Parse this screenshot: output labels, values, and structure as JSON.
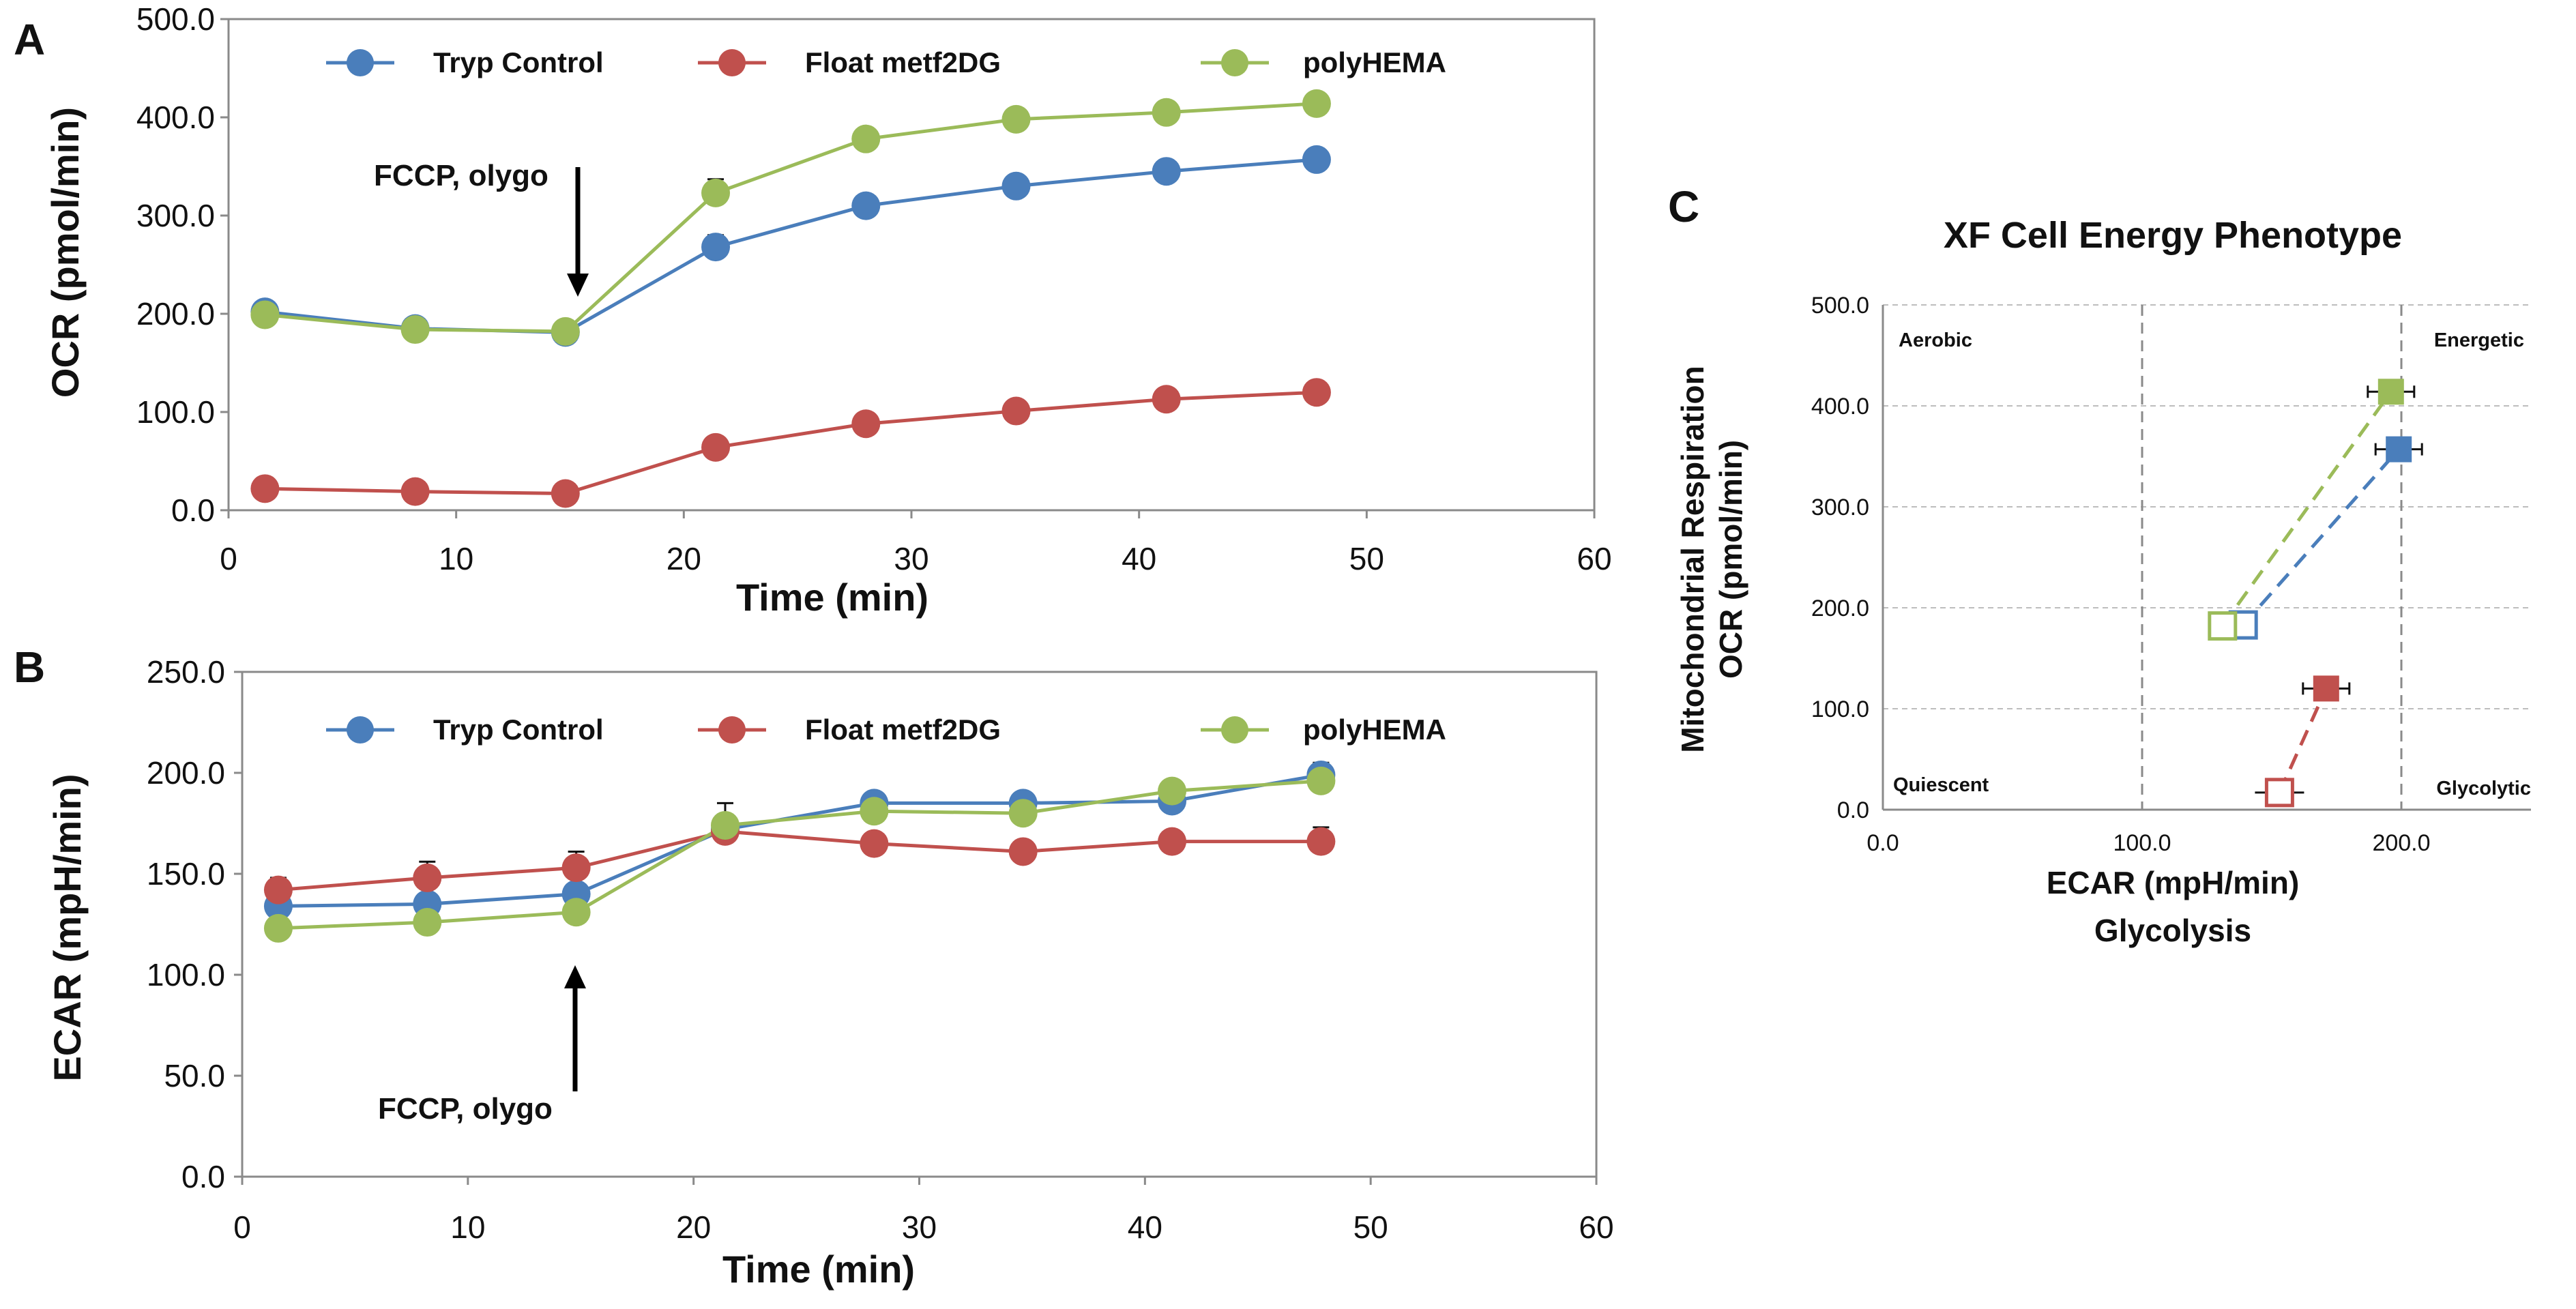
{
  "chart_data": [
    {
      "panel": "A",
      "type": "line",
      "title": "",
      "xlabel": "Time (min)",
      "ylabel": "OCR (pmol/min)",
      "xlim": [
        0,
        60
      ],
      "ylim": [
        0,
        500
      ],
      "xticks": [
        "0",
        "10",
        "20",
        "30",
        "40",
        "50",
        "60"
      ],
      "yticks": [
        "0.0",
        "100.0",
        "200.0",
        "300.0",
        "400.0",
        "500.0"
      ],
      "x": [
        1.6,
        8.2,
        14.8,
        21.4,
        28.0,
        34.6,
        41.2,
        47.8
      ],
      "series": [
        {
          "name": "Tryp Control",
          "color": "#4a7ebb",
          "values": [
            202,
            185,
            181,
            268,
            310,
            330,
            345,
            357
          ],
          "errors": [
            0,
            0,
            0,
            12,
            0,
            0,
            0,
            0
          ]
        },
        {
          "name": "Float metf2DG",
          "color": "#c0504d",
          "values": [
            22,
            19,
            17,
            64,
            88,
            101,
            113,
            120
          ],
          "errors": [
            0,
            0,
            0,
            0,
            0,
            0,
            0,
            0
          ]
        },
        {
          "name": "polyHEMA",
          "color": "#9bbb59",
          "values": [
            199,
            184,
            182,
            323,
            378,
            398,
            405,
            414
          ],
          "errors": [
            0,
            0,
            0,
            14,
            0,
            0,
            0,
            0
          ]
        }
      ],
      "annotation": {
        "text": "FCCP, olygo",
        "x": 15.2
      }
    },
    {
      "panel": "B",
      "type": "line",
      "title": "",
      "xlabel": "Time (min)",
      "ylabel": "ECAR (mpH/min)",
      "xlim": [
        0,
        60
      ],
      "ylim": [
        0,
        250
      ],
      "xticks": [
        "0",
        "10",
        "20",
        "30",
        "40",
        "50",
        "60"
      ],
      "yticks": [
        "0.0",
        "50.0",
        "100.0",
        "150.0",
        "200.0",
        "250.0"
      ],
      "x": [
        1.6,
        8.2,
        14.8,
        21.4,
        28.0,
        34.6,
        41.2,
        47.8
      ],
      "series": [
        {
          "name": "Tryp Control",
          "color": "#4a7ebb",
          "values": [
            134,
            135,
            140,
            172,
            185,
            185,
            186,
            199
          ],
          "errors": [
            0,
            0,
            0,
            0,
            0,
            0,
            0,
            0
          ]
        },
        {
          "name": "Float metf2DG",
          "color": "#c0504d",
          "values": [
            142,
            148,
            153,
            171,
            165,
            161,
            166,
            166
          ],
          "errors": [
            6,
            8,
            8,
            0,
            0,
            0,
            0,
            7
          ]
        },
        {
          "name": "polyHEMA",
          "color": "#9bbb59",
          "values": [
            123,
            126,
            131,
            174,
            181,
            180,
            191,
            196
          ],
          "errors": [
            0,
            0,
            0,
            11,
            0,
            0,
            0,
            9
          ]
        }
      ],
      "annotation": {
        "text": "FCCP, olygo",
        "x": 14.8
      }
    },
    {
      "panel": "C",
      "type": "scatter",
      "title": "XF Cell Energy Phenotype",
      "xlabel": "ECAR (mpH/min)",
      "xlabel2": "Glycolysis",
      "ylabel": "OCR (pmol/min)",
      "ylabel2": "Mitochondrial Respiration",
      "xlim": [
        0,
        250
      ],
      "ylim": [
        0,
        500
      ],
      "xticks": [
        "0.0",
        "100.0",
        "200.0"
      ],
      "yticks": [
        "0.0",
        "100.0",
        "200.0",
        "300.0",
        "400.0",
        "500.0"
      ],
      "quadrants": {
        "top_left": "Aerobic",
        "top_right": "Energetic",
        "bottom_left": "Quiescent",
        "bottom_right": "Glycolytic"
      },
      "series": [
        {
          "name": "Tryp Control",
          "color": "#4a7ebb",
          "baseline": {
            "x": 139,
            "y": 183
          },
          "stressed": {
            "x": 199,
            "y": 357
          }
        },
        {
          "name": "Float metf2DG",
          "color": "#c0504d",
          "baseline": {
            "x": 153,
            "y": 17
          },
          "stressed": {
            "x": 171,
            "y": 120
          }
        },
        {
          "name": "polyHEMA",
          "color": "#9bbb59",
          "baseline": {
            "x": 131,
            "y": 182
          },
          "stressed": {
            "x": 196,
            "y": 414
          }
        }
      ]
    }
  ]
}
